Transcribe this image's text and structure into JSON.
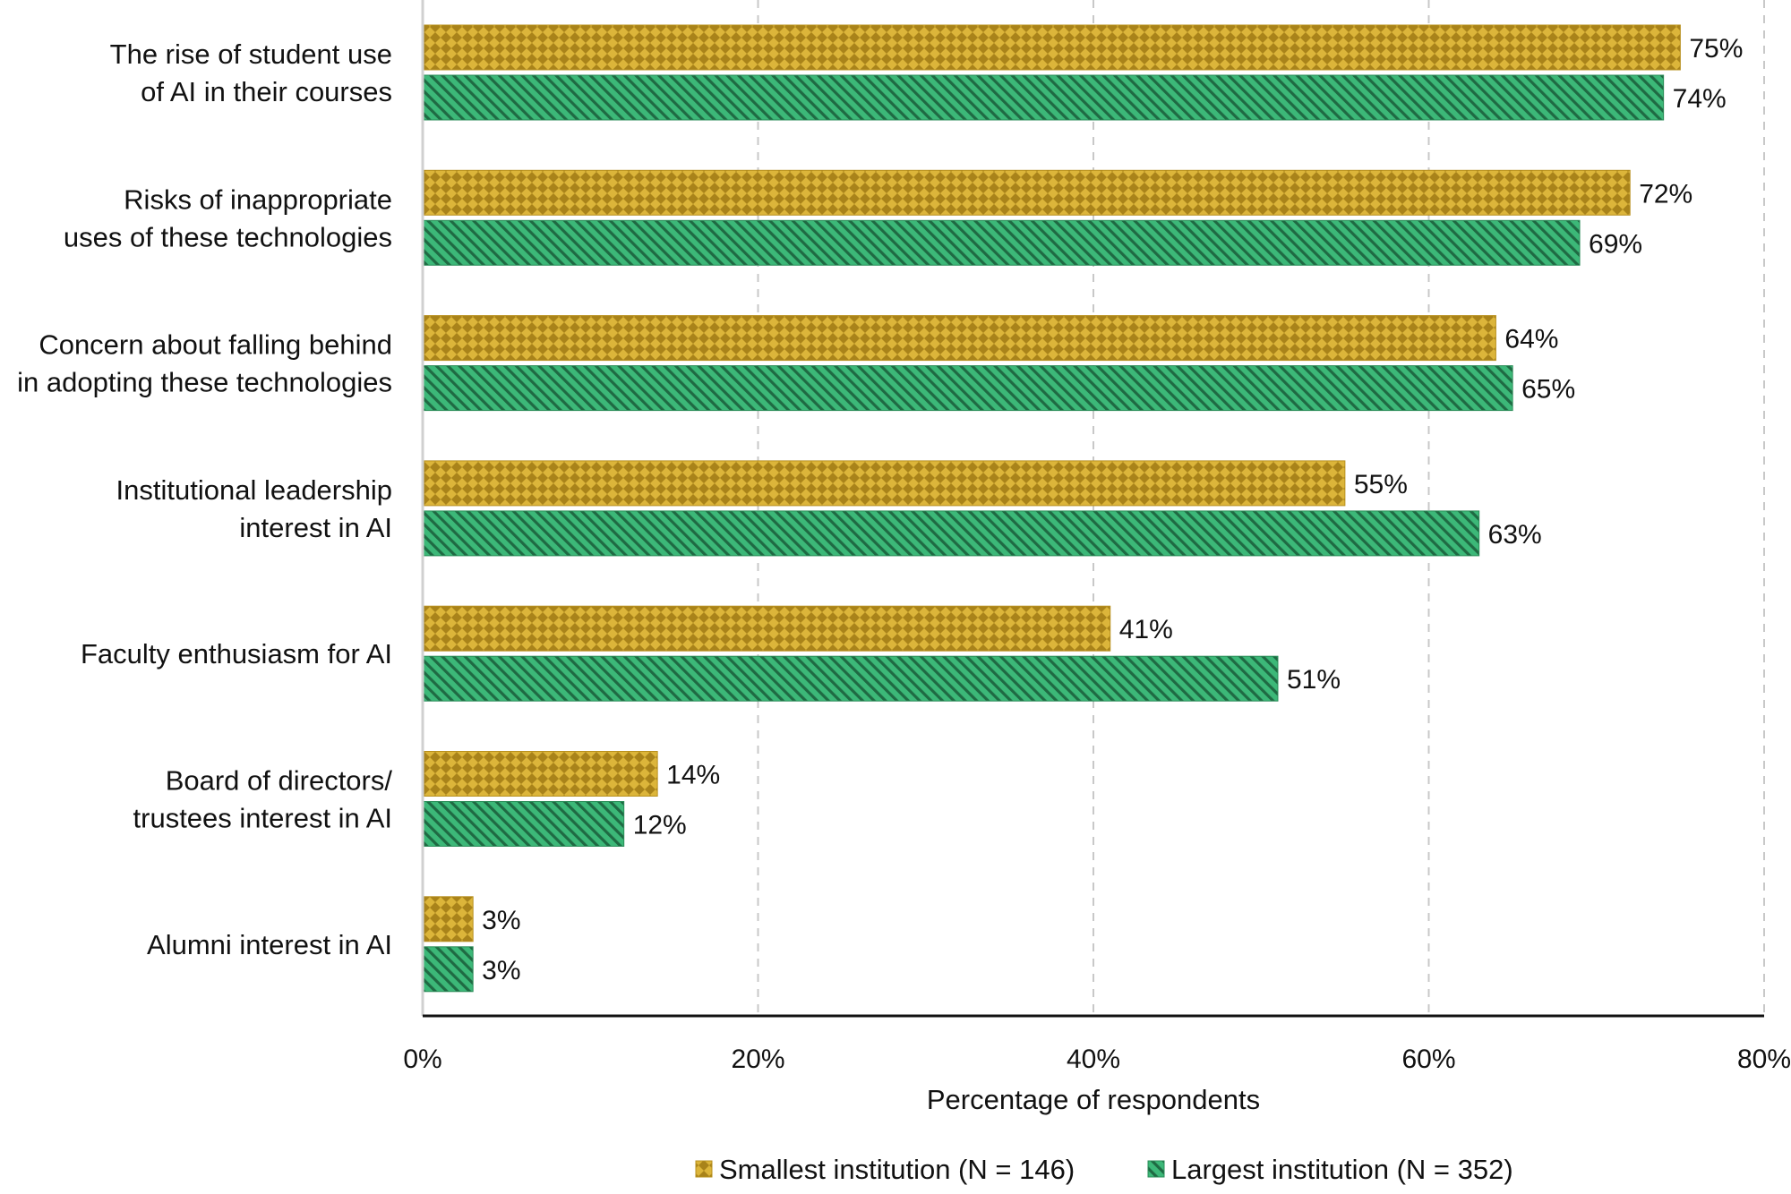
{
  "chart_data": {
    "type": "bar",
    "orientation": "horizontal",
    "categories": [
      [
        "The rise of student use",
        "of AI in their courses"
      ],
      [
        "Risks of inappropriate",
        "uses of these technologies"
      ],
      [
        "Concern about falling behind",
        "in adopting these technologies"
      ],
      [
        "Institutional leadership",
        "interest in AI"
      ],
      [
        "Faculty enthusiasm for AI"
      ],
      [
        "Board of directors/",
        "trustees interest in AI"
      ],
      [
        "Alumni interest in AI"
      ]
    ],
    "series": [
      {
        "name": "Smallest institution (N = 146)",
        "color": "#c9a227",
        "pattern": "checker",
        "values": [
          75,
          72,
          64,
          55,
          41,
          14,
          3
        ]
      },
      {
        "name": "Largest institution (N = 352)",
        "color": "#3cb878",
        "pattern": "diagonal-stripes",
        "values": [
          74,
          69,
          65,
          63,
          51,
          12,
          3
        ]
      }
    ],
    "value_suffix": "%",
    "xlabel": "Percentage of respondents",
    "xlim": [
      0,
      80
    ],
    "xticks": [
      0,
      20,
      40,
      60,
      80
    ],
    "xtick_labels": [
      "0%",
      "20%",
      "40%",
      "60%",
      "80%"
    ],
    "grid": "vertical-dashed",
    "legend_position": "bottom"
  }
}
